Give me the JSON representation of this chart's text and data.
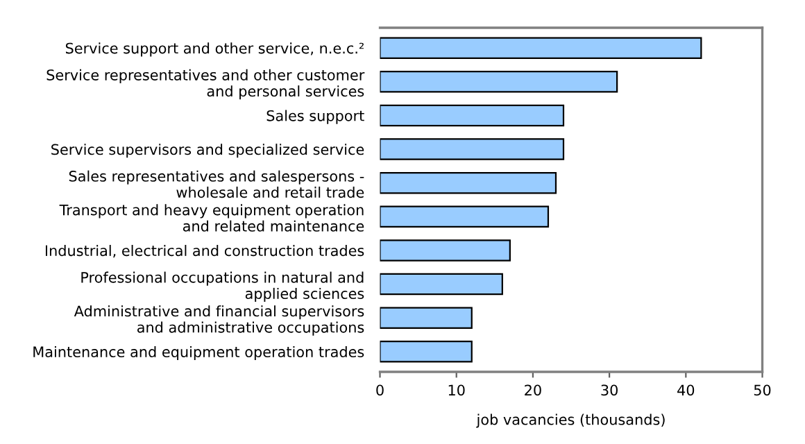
{
  "chart_data": {
    "type": "bar",
    "orientation": "horizontal",
    "xlabel": "job vacancies (thousands)",
    "categories": [
      "Service support and other service, n.e.c.²",
      "Service representatives and other customer\nand personal services",
      "Sales support",
      "Service supervisors and specialized service",
      "Sales representatives and salespersons -\nwholesale and retail trade",
      "Transport and heavy equipment operation\nand related maintenance",
      "Industrial, electrical and construction trades",
      "Professional occupations in natural and\napplied sciences",
      "Administrative and financial supervisors\nand administrative occupations",
      "Maintenance and equipment operation trades"
    ],
    "values": [
      42,
      31,
      24,
      24,
      23,
      22,
      17,
      16,
      12,
      12
    ],
    "color": "#99ccff",
    "xlim": [
      0,
      50
    ],
    "xticks": [
      0,
      10,
      20,
      30,
      40,
      50
    ],
    "grid": false,
    "legend": false
  }
}
